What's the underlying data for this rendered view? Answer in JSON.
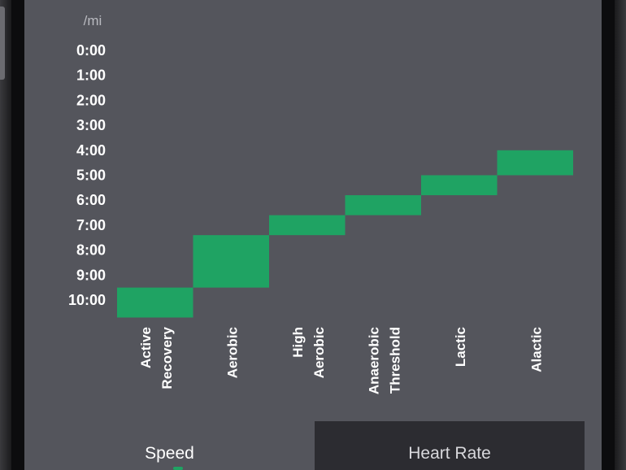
{
  "chart_data": {
    "type": "bar",
    "unit_label": "/mi",
    "y_ticks": [
      "0:00",
      "1:00",
      "2:00",
      "3:00",
      "4:00",
      "5:00",
      "6:00",
      "7:00",
      "8:00",
      "9:00",
      "10:00"
    ],
    "ylim_minutes": [
      0,
      10
    ],
    "y_inverted": true,
    "categories": [
      {
        "line1": "Active",
        "line2": "Recovery"
      },
      {
        "line1": "Aerobic",
        "line2": ""
      },
      {
        "line1": "High",
        "line2": "Aerobic"
      },
      {
        "line1": "Anaerobic",
        "line2": "Threshold"
      },
      {
        "line1": "Lactic",
        "line2": ""
      },
      {
        "line1": "Alactic",
        "line2": ""
      }
    ],
    "ranges_minutes": [
      [
        9.5,
        10.7
      ],
      [
        7.4,
        9.5
      ],
      [
        6.6,
        7.4
      ],
      [
        5.8,
        6.6
      ],
      [
        5.0,
        5.8
      ],
      [
        4.0,
        5.0
      ]
    ],
    "bar_color": "#1fa363"
  },
  "tabs": {
    "speed_label": "Speed",
    "heart_rate_label": "Heart Rate"
  }
}
